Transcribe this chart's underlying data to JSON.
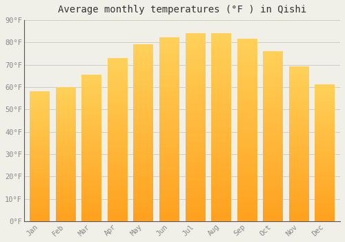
{
  "title": "Average monthly temperatures (°F ) in Qishi",
  "months": [
    "Jan",
    "Feb",
    "Mar",
    "Apr",
    "May",
    "Jun",
    "Jul",
    "Aug",
    "Sep",
    "Oct",
    "Nov",
    "Dec"
  ],
  "values": [
    58,
    60,
    65.5,
    73,
    79,
    82,
    84,
    84,
    81.5,
    76,
    69,
    61
  ],
  "bar_color_top": "#FFCC55",
  "bar_color_bottom": "#FFA020",
  "background_color": "#F0EFE8",
  "grid_color": "#CCCCCC",
  "ylim": [
    0,
    90
  ],
  "yticks": [
    0,
    10,
    20,
    30,
    40,
    50,
    60,
    70,
    80,
    90
  ],
  "ytick_labels": [
    "0°F",
    "10°F",
    "20°F",
    "30°F",
    "40°F",
    "50°F",
    "60°F",
    "70°F",
    "80°F",
    "90°F"
  ],
  "title_fontsize": 10,
  "tick_fontsize": 7.5,
  "tick_color": "#888888",
  "title_color": "#333333",
  "font_family": "monospace",
  "bar_width": 0.75,
  "spine_color": "#555555",
  "figsize": [
    5.0,
    3.5
  ],
  "dpi": 100
}
